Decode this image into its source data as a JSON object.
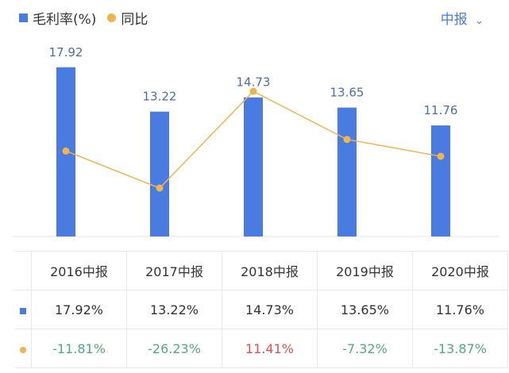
{
  "legend": {
    "bar_label": "毛利率(%)",
    "line_label": "同比"
  },
  "period_selector": {
    "label": "中报",
    "icon": "chevron-down-icon"
  },
  "colors": {
    "bar": "#4a7be0",
    "line": "#f0b44c",
    "positive": "#d9534f",
    "negative": "#55aa7d"
  },
  "chart_data": {
    "type": "bar+line",
    "categories": [
      "2016中报",
      "2017中报",
      "2018中报",
      "2019中报",
      "2020中报"
    ],
    "series": [
      {
        "name": "毛利率(%)",
        "type": "bar",
        "values": [
          17.92,
          13.22,
          14.73,
          13.65,
          11.76
        ],
        "data_labels": [
          "17.92",
          "13.22",
          "14.73",
          "13.65",
          "11.76"
        ]
      },
      {
        "name": "同比",
        "type": "line",
        "values": [
          -11.81,
          -26.23,
          11.41,
          -7.32,
          -13.87
        ]
      }
    ],
    "grid": false
  },
  "table": {
    "headers": [
      "2016中报",
      "2017中报",
      "2018中报",
      "2019中报",
      "2020中报"
    ],
    "margin_row": [
      "17.92%",
      "13.22%",
      "14.73%",
      "13.65%",
      "11.76%"
    ],
    "yoy_row": [
      "-11.81%",
      "-26.23%",
      "11.41%",
      "-7.32%",
      "-13.87%"
    ]
  }
}
